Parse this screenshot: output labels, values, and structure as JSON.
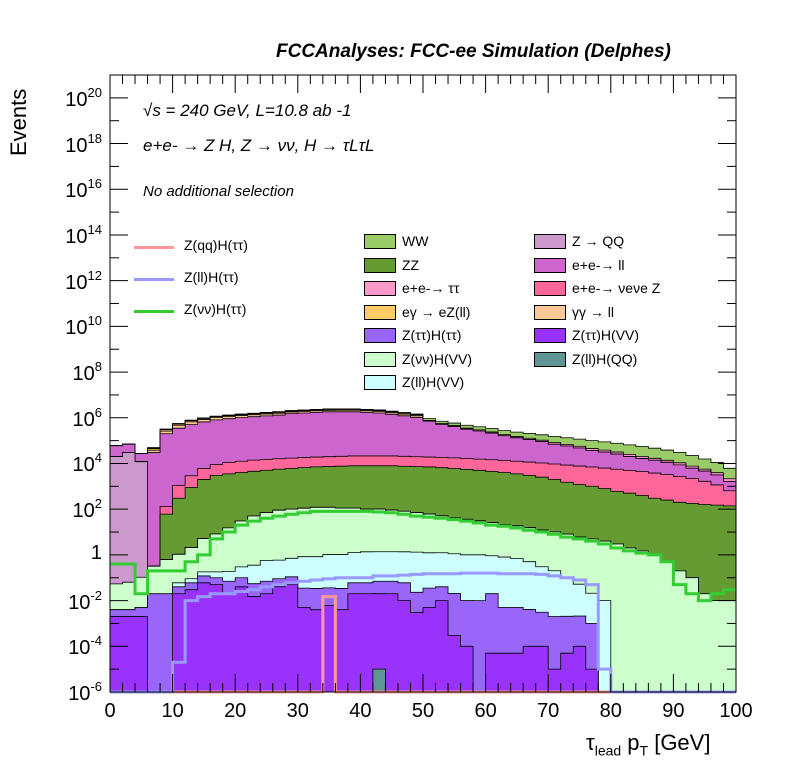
{
  "chart_data": {
    "type": "area",
    "header": "FCCAnalyses: FCC-ee Simulation (Delphes)",
    "ylabel": "Events",
    "xlabel": "τlead pT [GeV]",
    "xlabel_parts": {
      "tau": "τ",
      "tau_sub": "lead",
      "p": " p",
      "p_sub": "T",
      "unit": " [GeV]"
    },
    "yscale": "log",
    "xlim": [
      0,
      100
    ],
    "ylim": [
      1e-06,
      1e+21
    ],
    "bin_width": 2,
    "annotations": [
      "√s = 240 GeV, L=10.8 ab -1",
      "e+e- → Z H, Z → νν, H → τLτL",
      "No additional selection"
    ],
    "x_ticks": [
      "0",
      "10",
      "20",
      "30",
      "40",
      "50",
      "60",
      "70",
      "80",
      "90",
      "100"
    ],
    "y_ticks": [
      {
        "base": "10",
        "exp": "-6",
        "value": 1e-06
      },
      {
        "base": "10",
        "exp": "-4",
        "value": 0.0001
      },
      {
        "base": "10",
        "exp": "-2",
        "value": 0.01
      },
      {
        "base": "1",
        "exp": "",
        "value": 1
      },
      {
        "base": "10",
        "exp": "2",
        "value": 100.0
      },
      {
        "base": "10",
        "exp": "4",
        "value": 10000.0
      },
      {
        "base": "10",
        "exp": "6",
        "value": 1000000.0
      },
      {
        "base": "10",
        "exp": "8",
        "value": 100000000.0
      },
      {
        "base": "10",
        "exp": "10",
        "value": 10000000000.0
      },
      {
        "base": "10",
        "exp": "12",
        "value": 1000000000000.0
      },
      {
        "base": "10",
        "exp": "14",
        "value": 100000000000000.0
      },
      {
        "base": "10",
        "exp": "16",
        "value": 1e+16
      },
      {
        "base": "10",
        "exp": "18",
        "value": 1e+18
      },
      {
        "base": "10",
        "exp": "20",
        "value": 1e+20
      }
    ],
    "stack_envelope": [
      {
        "name": "Z(ll)H(QQ)",
        "color": "#5f9595",
        "values": [
          0,
          0,
          0,
          0,
          0,
          0,
          0,
          0,
          0,
          0,
          0,
          0,
          0,
          0,
          0,
          0,
          0,
          0,
          0,
          0,
          0,
          1e-05,
          0,
          0,
          0,
          0,
          0,
          0,
          0,
          0,
          0,
          0,
          0,
          0,
          0,
          0,
          0,
          0,
          0,
          0,
          0,
          0,
          0,
          0,
          0,
          0,
          0,
          0,
          0,
          0
        ]
      },
      {
        "name": "Z(ττ)H(VV)",
        "color": "#9932fa",
        "values": [
          0.002,
          0.002,
          0.002,
          0,
          0,
          0.02,
          0.03,
          0.06,
          0.05,
          0.02,
          0.04,
          0.015,
          0.02,
          0.04,
          0.05,
          0.005,
          0.004,
          0.006,
          0.004,
          0.02,
          0.02,
          0.02,
          0.02,
          0.01,
          0.003,
          0.005,
          0.01,
          0.0003,
          0.0001,
          0,
          5e-05,
          5e-05,
          5e-05,
          0.0001,
          0.0001,
          1e-05,
          5e-05,
          0.0001,
          1e-05,
          0,
          0,
          0,
          0,
          0,
          0,
          0,
          0,
          0,
          0,
          0
        ]
      },
      {
        "name": "Z(ττ)H(ττ)",
        "color": "#9966fa",
        "values": [
          0.002,
          0.002,
          0.003,
          0.02,
          0.02,
          0.02,
          0.03,
          0.06,
          0.05,
          0.05,
          0.06,
          0.04,
          0.05,
          0.05,
          0.06,
          0.03,
          0.03,
          0.03,
          0.03,
          0.04,
          0.04,
          0.05,
          0.05,
          0.05,
          0.02,
          0.03,
          0.03,
          0.02,
          0.01,
          0.01,
          0.02,
          0.005,
          0.005,
          0.004,
          0.003,
          0.002,
          0.002,
          0.002,
          0.001,
          0,
          0,
          0,
          0,
          0,
          0,
          0,
          0,
          0,
          0,
          0
        ]
      },
      {
        "name": "Z(ll)H(VV)",
        "color": "#ccfffe",
        "values": [
          0,
          0,
          0,
          0,
          0,
          0.02,
          0.03,
          0.06,
          0.08,
          0.12,
          0.2,
          0.3,
          0.5,
          0.5,
          0.6,
          0.8,
          0.8,
          1,
          1,
          1.2,
          1.3,
          1.3,
          1.3,
          1.3,
          1.3,
          1.2,
          1.2,
          1.1,
          1,
          1,
          0.9,
          0.8,
          0.7,
          0.5,
          0.3,
          0.2,
          0.1,
          0.05,
          0.02,
          0.01,
          0,
          0,
          0,
          0,
          0,
          0,
          0,
          0,
          0,
          0
        ]
      },
      {
        "name": "Z(νν)H(VV)",
        "color": "#ccffcc",
        "values": [
          0.05,
          0.06,
          0.1,
          0.3,
          0.6,
          1,
          2,
          5,
          8,
          15,
          30,
          50,
          70,
          90,
          100,
          110,
          120,
          120,
          110,
          110,
          100,
          100,
          90,
          80,
          70,
          60,
          50,
          40,
          35,
          30,
          25,
          20,
          18,
          15,
          12,
          10,
          8,
          6,
          5,
          4,
          3,
          2,
          1.5,
          1,
          0.5,
          0.2,
          0.1,
          0.02,
          0.01,
          0.01
        ]
      },
      {
        "name": "Z → QQ",
        "color": "#cc99cc",
        "values": [
          20000.0,
          30000.0,
          12000.0,
          0,
          0,
          0,
          0,
          0,
          0,
          0,
          0,
          0,
          0,
          0,
          0,
          0,
          0,
          0,
          0,
          0,
          0,
          0,
          0,
          0,
          0,
          0,
          0,
          0,
          0,
          0,
          0,
          0,
          0,
          0,
          0,
          0,
          0,
          0,
          0,
          0,
          0,
          0,
          0,
          0,
          0,
          0,
          0,
          0,
          0,
          0
        ]
      },
      {
        "name": "ZZ",
        "color": "#669a33",
        "values": [
          0,
          0,
          0,
          0,
          60,
          300,
          900,
          2000,
          3000,
          3500,
          4000,
          4500,
          5000,
          5500,
          6000,
          6500,
          7000,
          7200,
          7500,
          7800,
          7800,
          7800,
          7800,
          7500,
          7200,
          7000,
          6500,
          6000,
          5500,
          5000,
          4500,
          4000,
          3500,
          3000,
          2500,
          2000,
          1500,
          1200,
          1000,
          800,
          600,
          500,
          400,
          300,
          250,
          200,
          180,
          160,
          150,
          140
        ]
      },
      {
        "name": "e+e-→ νeνe Z",
        "color": "#ff6699",
        "values": [
          0,
          0,
          0,
          0,
          70,
          800,
          2000,
          4000,
          6000,
          7500,
          8500,
          9500,
          10000.0,
          10500.0,
          11000.0,
          11500.0,
          12000.0,
          12500.0,
          13000.0,
          13500.0,
          13500.0,
          13500.0,
          13500.0,
          13000.0,
          12500.0,
          12000.0,
          12000.0,
          11500.0,
          11000.0,
          10500.0,
          10000.0,
          9500,
          9000,
          8500,
          8000,
          7500,
          7000,
          6500,
          6000,
          5500,
          5000,
          4500,
          4000,
          3500,
          3000,
          2500,
          2000,
          1500,
          1000,
          500
        ]
      },
      {
        "name": "e+e-→ ll",
        "color": "#cc66cc",
        "values": [
          40000.0,
          40000.0,
          15000.0,
          30000.0,
          200000.0,
          350000.0,
          500000.0,
          650000.0,
          800000.0,
          900000.0,
          1000000.0,
          1100000.0,
          1200000.0,
          1300000.0,
          1500000.0,
          1600000.0,
          1700000.0,
          1800000.0,
          1800000.0,
          1800000.0,
          1700000.0,
          1600000.0,
          1400000.0,
          1200000.0,
          1000000.0,
          700000.0,
          500000.0,
          400000.0,
          300000.0,
          250000.0,
          200000.0,
          150000.0,
          120000.0,
          100000.0,
          80000.0,
          60000.0,
          50000.0,
          40000.0,
          30000.0,
          25000.0,
          20000.0,
          15000.0,
          12000.0,
          10000.0,
          8000.0,
          6000.0,
          4000.0,
          3000.0,
          2000.0,
          1000.0
        ]
      },
      {
        "name": "γγ → ll",
        "color": "#fec998",
        "values": [
          0,
          0,
          0,
          8000.0,
          60000.0,
          120000.0,
          160000.0,
          190000.0,
          210000.0,
          230000.0,
          240000.0,
          250000.0,
          260000.0,
          270000.0,
          280000.0,
          290000.0,
          300000.0,
          305000.0,
          310000.0,
          310000.0,
          300000.0,
          280000.0,
          250000.0,
          220000.0,
          200000.0,
          0,
          0,
          0,
          0,
          0,
          0,
          0,
          0,
          0,
          0,
          0,
          0,
          0,
          0,
          0,
          0,
          0,
          0,
          0,
          0,
          0,
          0,
          0,
          0,
          0
        ]
      },
      {
        "name": "eγ → eZ(ll)",
        "color": "#ffcc66",
        "values": [
          0,
          0,
          0,
          6000.0,
          40000.0,
          60000.0,
          80000.0,
          90000.0,
          100000.0,
          110000.0,
          120000.0,
          130000.0,
          140000.0,
          150000.0,
          160000.0,
          160000.0,
          170000.0,
          170000.0,
          180000.0,
          180000.0,
          170000.0,
          160000.0,
          150000.0,
          140000.0,
          120000.0,
          0,
          0,
          0,
          0,
          0,
          0,
          0,
          0,
          0,
          0,
          0,
          0,
          0,
          0,
          0,
          0,
          0,
          0,
          0,
          0,
          0,
          0,
          0,
          0,
          0
        ]
      },
      {
        "name": "e+e-→ ττ",
        "color": "#ff99cc",
        "values": [
          0,
          0,
          0,
          3000.0,
          10000.0,
          15000.0,
          20000.0,
          25000.0,
          30000.0,
          35000.0,
          40000.0,
          45000.0,
          50000.0,
          55000.0,
          60000.0,
          60000.0,
          65000.0,
          70000.0,
          70000.0,
          75000.0,
          70000.0,
          65000.0,
          60000.0,
          55000.0,
          50000.0,
          50000.0,
          45000.0,
          40000.0,
          35000.0,
          30000.0,
          25000.0,
          20000.0,
          18000.0,
          16000.0,
          14000.0,
          12000.0,
          10000.0,
          9000.0,
          8000.0,
          7000.0,
          6000.0,
          5000.0,
          4000.0,
          3000.0,
          2500.0,
          2000.0,
          1500.0,
          1000.0,
          800,
          500
        ]
      },
      {
        "name": "WW",
        "color": "#99cc66",
        "values": [
          0,
          0,
          0,
          3000.0,
          10000.0,
          15000.0,
          20000.0,
          25000.0,
          30000.0,
          35000.0,
          40000.0,
          45000.0,
          50000.0,
          55000.0,
          60000.0,
          60000.0,
          65000.0,
          70000.0,
          70000.0,
          75000.0,
          75000.0,
          72000.0,
          70000.0,
          68000.0,
          65000.0,
          150000.0,
          140000.0,
          130000.0,
          120000.0,
          110000.0,
          100000.0,
          90000.0,
          85000.0,
          80000.0,
          75000.0,
          70000.0,
          65000.0,
          60000.0,
          55000.0,
          50000.0,
          45000.0,
          40000.0,
          35000.0,
          30000.0,
          25000.0,
          20000.0,
          15000.0,
          10000.0,
          7000.0,
          4000.0
        ]
      }
    ],
    "signal_lines": [
      {
        "name": "Z(qq)H(ττ)",
        "color": "#ff9999",
        "values": [
          1e-06,
          1e-06,
          1e-06,
          1e-06,
          1e-06,
          1e-06,
          1e-06,
          1e-06,
          1e-06,
          1e-06,
          1e-06,
          1e-06,
          1e-06,
          1e-06,
          1e-06,
          1e-06,
          1e-06,
          0.015,
          1e-06,
          1e-06,
          1e-06,
          1e-06,
          1e-06,
          1e-06,
          1e-06,
          1e-06,
          1e-06,
          1e-06,
          1e-06,
          1e-06,
          1e-06,
          1e-06,
          1e-06,
          1e-06,
          1e-06,
          1e-06,
          1e-06,
          1e-06,
          1e-06,
          1e-06,
          1e-06,
          1e-06,
          1e-06,
          1e-06,
          1e-06,
          1e-06,
          1e-06,
          1e-06,
          1e-06,
          1e-06
        ]
      },
      {
        "name": "Z(ll)H(ττ)",
        "color": "#9999ff",
        "values": [
          1e-06,
          1e-06,
          1e-06,
          1e-06,
          1e-06,
          2e-05,
          0.01,
          0.015,
          0.02,
          0.02,
          0.025,
          0.03,
          0.04,
          0.05,
          0.06,
          0.07,
          0.08,
          0.09,
          0.1,
          0.1,
          0.1,
          0.12,
          0.12,
          0.13,
          0.14,
          0.15,
          0.15,
          0.15,
          0.16,
          0.16,
          0.16,
          0.15,
          0.15,
          0.15,
          0.14,
          0.12,
          0.1,
          0.08,
          0.05,
          1e-05,
          1e-06,
          1e-06,
          1e-06,
          1e-06,
          1e-06,
          1e-06,
          1e-06,
          1e-06,
          1e-06,
          1e-06
        ]
      },
      {
        "name": "Z(νν)H(ττ)",
        "color": "#33cc33",
        "values": [
          0.4,
          0.4,
          0.02,
          0.2,
          0.2,
          0.2,
          0.5,
          1,
          5,
          10,
          20,
          30,
          40,
          50,
          60,
          70,
          80,
          80,
          80,
          80,
          80,
          75,
          70,
          60,
          50,
          45,
          40,
          35,
          30,
          25,
          20,
          18,
          15,
          12,
          10,
          8,
          6,
          5,
          4,
          3,
          2,
          1.5,
          1.2,
          1,
          0.5,
          0.05,
          0.02,
          0.01,
          0.02,
          0.03
        ]
      }
    ],
    "legend": {
      "lines": [
        "Z(qq)H(ττ)",
        "Z(ll)H(ττ)",
        "Z(νν)H(ττ)"
      ],
      "col1": [
        "WW",
        "ZZ",
        "e+e-→ ττ",
        "eγ → eZ(ll)",
        "Z(ττ)H(ττ)",
        "Z(νν)H(VV)",
        "Z(ll)H(VV)"
      ],
      "col2": [
        "Z → QQ",
        "e+e-→ ll",
        "e+e-→ νeνe Z",
        "γγ → ll",
        "Z(ττ)H(VV)",
        "Z(ll)H(QQ)"
      ]
    }
  },
  "colors": {
    "WW": "#99cc66",
    "ZZ": "#669a33",
    "e+e-→ ττ": "#ff99cc",
    "eγ → eZ(ll)": "#ffcc66",
    "Z(ττ)H(ττ)": "#9966fa",
    "Z(νν)H(VV)": "#ccffcc",
    "Z(ll)H(VV)": "#ccfffe",
    "Z → QQ": "#cc99cc",
    "e+e-→ ll": "#cc66cc",
    "e+e-→ νeνe Z": "#ff6699",
    "γγ → ll": "#fec998",
    "Z(ττ)H(VV)": "#9932fa",
    "Z(ll)H(QQ)": "#5f9595",
    "Z(qq)H(ττ)": "#ff9999",
    "Z(ll)H(ττ)": "#9999ff",
    "Z(νν)H(ττ)": "#33cc33"
  }
}
